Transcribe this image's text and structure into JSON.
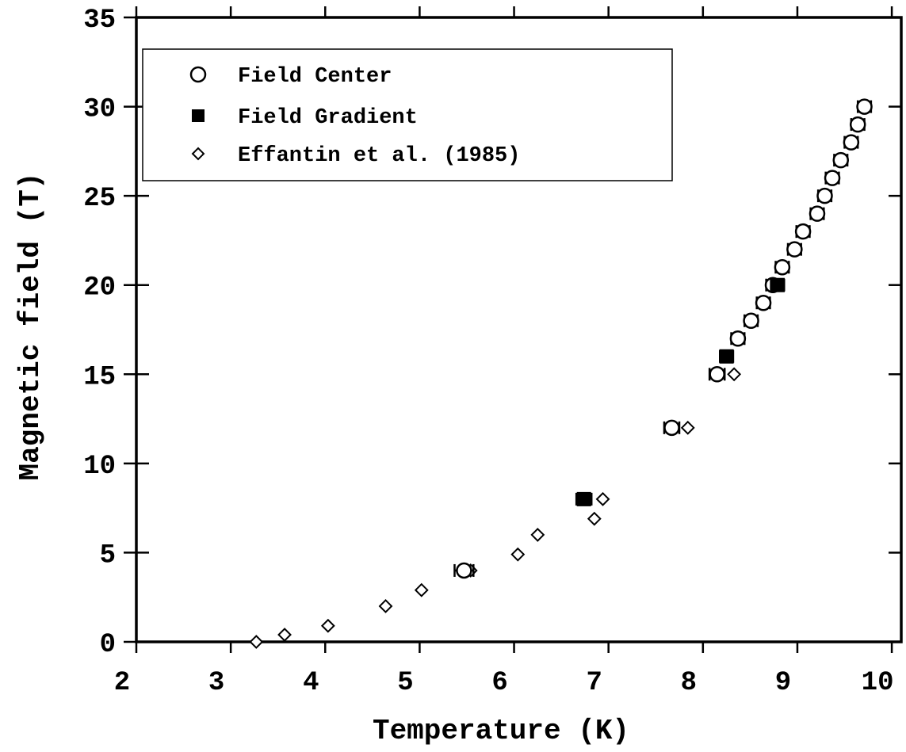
{
  "chart_data": {
    "type": "scatter",
    "xlabel": "Temperature (K)",
    "ylabel": "Magnetic field (T)",
    "xlim": [
      2,
      10.1
    ],
    "ylim": [
      0,
      35
    ],
    "xticks": [
      "2",
      "3",
      "4",
      "5",
      "6",
      "7",
      "8",
      "9",
      "10"
    ],
    "yticks": [
      "0",
      "5",
      "10",
      "15",
      "20",
      "25",
      "30",
      "35"
    ],
    "grid": false,
    "legend_position": "top-left",
    "series": [
      {
        "name": "Field Center",
        "marker": "open-circle",
        "error_bars": "horizontal",
        "points": [
          {
            "x": 5.47,
            "y": 4.0,
            "xerr": 0.1
          },
          {
            "x": 7.67,
            "y": 12.0,
            "xerr": 0.08
          },
          {
            "x": 8.15,
            "y": 15.0,
            "xerr": 0.08
          },
          {
            "x": 8.37,
            "y": 17.0,
            "xerr": 0.07
          },
          {
            "x": 8.51,
            "y": 18.0,
            "xerr": 0.07
          },
          {
            "x": 8.64,
            "y": 19.0,
            "xerr": 0.07
          },
          {
            "x": 8.74,
            "y": 20.0,
            "xerr": 0.07
          },
          {
            "x": 8.84,
            "y": 21.0,
            "xerr": 0.07
          },
          {
            "x": 8.97,
            "y": 22.0,
            "xerr": 0.07
          },
          {
            "x": 9.06,
            "y": 23.0,
            "xerr": 0.07
          },
          {
            "x": 9.21,
            "y": 24.0,
            "xerr": 0.07
          },
          {
            "x": 9.29,
            "y": 25.0,
            "xerr": 0.07
          },
          {
            "x": 9.37,
            "y": 26.0,
            "xerr": 0.07
          },
          {
            "x": 9.46,
            "y": 27.0,
            "xerr": 0.07
          },
          {
            "x": 9.57,
            "y": 28.0,
            "xerr": 0.07
          },
          {
            "x": 9.64,
            "y": 29.0,
            "xerr": 0.07
          },
          {
            "x": 9.71,
            "y": 30.0,
            "xerr": 0.07
          }
        ]
      },
      {
        "name": "Field Gradient",
        "marker": "filled-square",
        "error_bars": "horizontal",
        "points": [
          {
            "x": 6.74,
            "y": 8.0,
            "xerr": 0.08
          },
          {
            "x": 8.25,
            "y": 16.0,
            "xerr": 0.07
          },
          {
            "x": 8.79,
            "y": 20.0,
            "xerr": 0.07
          }
        ]
      },
      {
        "name": "Effantin et al. (1985)",
        "marker": "open-diamond",
        "points": [
          {
            "x": 3.27,
            "y": 0.0
          },
          {
            "x": 3.57,
            "y": 0.4
          },
          {
            "x": 4.03,
            "y": 0.9
          },
          {
            "x": 4.64,
            "y": 2.0
          },
          {
            "x": 5.02,
            "y": 2.9
          },
          {
            "x": 5.54,
            "y": 4.0
          },
          {
            "x": 6.04,
            "y": 4.9
          },
          {
            "x": 6.25,
            "y": 6.0
          },
          {
            "x": 6.85,
            "y": 6.9
          },
          {
            "x": 6.94,
            "y": 8.0
          },
          {
            "x": 7.84,
            "y": 12.0
          },
          {
            "x": 8.33,
            "y": 15.0
          }
        ]
      }
    ]
  }
}
